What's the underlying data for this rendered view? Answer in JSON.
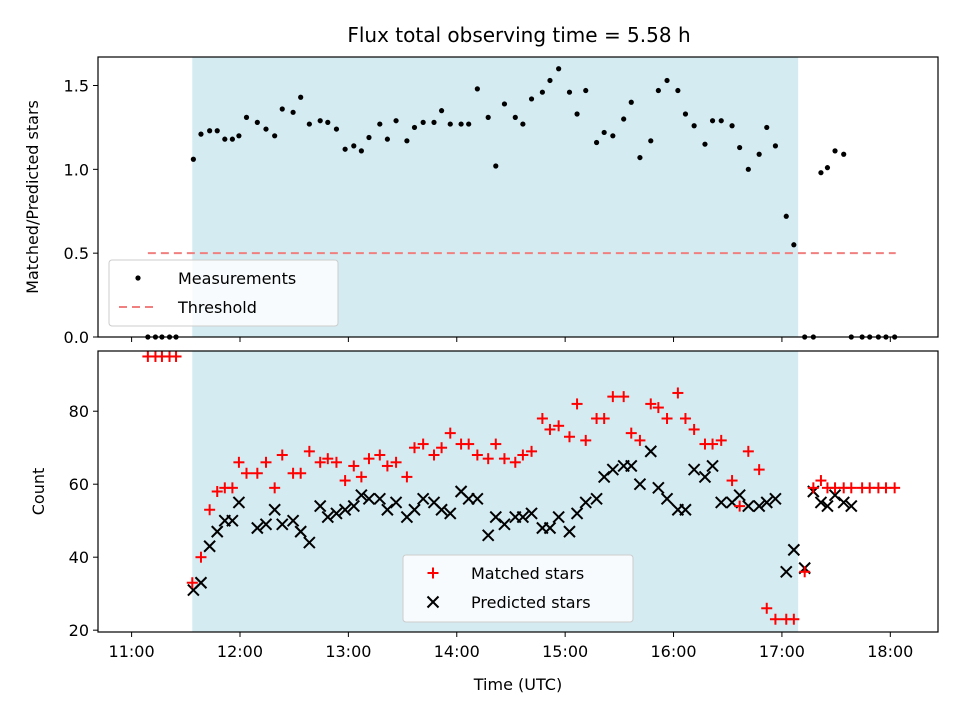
{
  "title": "Flux total observing time = 5.58 h",
  "xlabel": "Time (UTC)",
  "x_ticks": [
    "11:00",
    "12:00",
    "13:00",
    "14:00",
    "15:00",
    "16:00",
    "17:00",
    "18:00"
  ],
  "colors": {
    "observing_band": "#add8e6",
    "measurements": "#000000",
    "threshold": "#f08080",
    "matched": "#ff0000",
    "predicted": "#000000"
  },
  "chart_data": [
    {
      "type": "scatter",
      "title": "Flux total observing time = 5.58 h",
      "xlabel": "",
      "ylabel": "Matched/Predicted stars",
      "x_unit": "hours UTC",
      "xlim": [
        10.69,
        18.44
      ],
      "ylim": [
        0,
        1.67
      ],
      "yticks": [
        0.0,
        0.5,
        1.0,
        1.5
      ],
      "yticklabels": [
        "0.0",
        "0.5",
        "1.0",
        "1.5"
      ],
      "highlight_span": {
        "x_start": 11.56,
        "x_end": 17.15
      },
      "legend": {
        "placement": "lower-left",
        "entries": [
          "Measurements",
          "Threshold"
        ]
      },
      "threshold": {
        "name": "Threshold",
        "y": 0.5,
        "x_start": 11.15,
        "x_end": 18.05
      },
      "series": [
        {
          "name": "Measurements",
          "marker": "dot",
          "x": [
            11.15,
            11.22,
            11.28,
            11.35,
            11.41,
            11.57,
            11.64,
            11.72,
            11.79,
            11.86,
            11.93,
            11.99,
            12.06,
            12.16,
            12.24,
            12.32,
            12.39,
            12.49,
            12.56,
            12.64,
            12.74,
            12.81,
            12.89,
            12.97,
            13.05,
            13.12,
            13.19,
            13.29,
            13.36,
            13.44,
            13.54,
            13.61,
            13.69,
            13.79,
            13.86,
            13.94,
            14.04,
            14.11,
            14.19,
            14.29,
            14.36,
            14.44,
            14.54,
            14.61,
            14.69,
            14.79,
            14.86,
            14.94,
            15.04,
            15.11,
            15.19,
            15.29,
            15.36,
            15.44,
            15.54,
            15.61,
            15.69,
            15.79,
            15.86,
            15.94,
            16.04,
            16.11,
            16.19,
            16.29,
            16.36,
            16.44,
            16.54,
            16.61,
            16.69,
            16.79,
            16.86,
            16.94,
            17.04,
            17.11,
            17.21,
            17.29,
            17.36,
            17.42,
            17.49,
            17.57,
            17.64,
            17.74,
            17.81,
            17.89,
            17.96,
            18.04
          ],
          "y": [
            0,
            0,
            0,
            0,
            0,
            1.06,
            1.21,
            1.23,
            1.23,
            1.18,
            1.18,
            1.2,
            1.31,
            1.28,
            1.24,
            1.2,
            1.36,
            1.34,
            1.43,
            1.27,
            1.29,
            1.28,
            1.24,
            1.12,
            1.14,
            1.11,
            1.19,
            1.27,
            1.18,
            1.29,
            1.17,
            1.25,
            1.28,
            1.28,
            1.35,
            1.27,
            1.27,
            1.27,
            1.48,
            1.31,
            1.02,
            1.39,
            1.31,
            1.27,
            1.42,
            1.46,
            1.53,
            1.6,
            1.46,
            1.33,
            1.47,
            1.16,
            1.22,
            1.2,
            1.3,
            1.4,
            1.07,
            1.17,
            1.47,
            1.53,
            1.47,
            1.33,
            1.26,
            1.15,
            1.29,
            1.29,
            1.26,
            1.13,
            1.0,
            1.09,
            1.25,
            1.14,
            0.72,
            0.55,
            0,
            0,
            0.98,
            1.01,
            1.11,
            1.09,
            0,
            0,
            0,
            0,
            0,
            0
          ]
        }
      ]
    },
    {
      "type": "scatter",
      "title": "",
      "xlabel": "Time (UTC)",
      "ylabel": "Count",
      "x_unit": "hours UTC",
      "xlim": [
        10.69,
        18.44
      ],
      "ylim": [
        19.5,
        96.5
      ],
      "yticks": [
        20,
        40,
        60,
        80
      ],
      "yticklabels": [
        "20",
        "40",
        "60",
        "80"
      ],
      "highlight_span": {
        "x_start": 11.56,
        "x_end": 17.15
      },
      "legend": {
        "placement": "lower-center",
        "entries": [
          "Matched stars",
          "Predicted stars"
        ]
      },
      "series": [
        {
          "name": "Matched stars",
          "marker": "plus",
          "x": [
            11.15,
            11.22,
            11.28,
            11.35,
            11.41,
            11.56,
            11.64,
            11.72,
            11.79,
            11.86,
            11.93,
            11.99,
            12.06,
            12.16,
            12.24,
            12.32,
            12.39,
            12.49,
            12.56,
            12.64,
            12.74,
            12.81,
            12.89,
            12.97,
            13.05,
            13.12,
            13.19,
            13.29,
            13.36,
            13.44,
            13.54,
            13.61,
            13.69,
            13.79,
            13.86,
            13.94,
            14.04,
            14.11,
            14.19,
            14.29,
            14.36,
            14.44,
            14.54,
            14.61,
            14.69,
            14.79,
            14.86,
            14.94,
            15.04,
            15.11,
            15.19,
            15.29,
            15.36,
            15.44,
            15.54,
            15.61,
            15.69,
            15.79,
            15.86,
            15.94,
            16.04,
            16.11,
            16.19,
            16.29,
            16.36,
            16.44,
            16.54,
            16.61,
            16.69,
            16.79,
            16.86,
            16.94,
            17.04,
            17.11,
            17.21,
            17.29,
            17.36,
            17.42,
            17.49,
            17.57,
            17.64,
            17.74,
            17.81,
            17.89,
            17.96,
            18.04
          ],
          "y": [
            95,
            95,
            95,
            95,
            95,
            33,
            40,
            53,
            58,
            59,
            59,
            66,
            63,
            63,
            66,
            59,
            68,
            63,
            63,
            69,
            66,
            67,
            66,
            61,
            65,
            62,
            67,
            68,
            65,
            66,
            62,
            70,
            71,
            68,
            70,
            74,
            71,
            71,
            68,
            67,
            71,
            67,
            66,
            68,
            69,
            78,
            75,
            76,
            73,
            82,
            72,
            78,
            78,
            84,
            84,
            74,
            72,
            82,
            81,
            78,
            85,
            78,
            75,
            71,
            71,
            72,
            61,
            54,
            69,
            64,
            26,
            23,
            23,
            23,
            36,
            59,
            61,
            59,
            59,
            59,
            59,
            59,
            59,
            59,
            59,
            59
          ],
          "note": "x and y arrays list points in time order"
        },
        {
          "name": "Predicted stars",
          "marker": "x",
          "x": [
            11.57,
            11.64,
            11.72,
            11.79,
            11.86,
            11.93,
            11.99,
            12.16,
            12.24,
            12.32,
            12.39,
            12.49,
            12.56,
            12.64,
            12.74,
            12.81,
            12.89,
            12.97,
            13.05,
            13.12,
            13.19,
            13.29,
            13.36,
            13.44,
            13.54,
            13.61,
            13.69,
            13.79,
            13.86,
            13.94,
            14.04,
            14.11,
            14.19,
            14.29,
            14.36,
            14.44,
            14.54,
            14.61,
            14.69,
            14.79,
            14.86,
            14.94,
            15.04,
            15.11,
            15.19,
            15.29,
            15.36,
            15.44,
            15.54,
            15.61,
            15.69,
            15.79,
            15.86,
            15.94,
            16.04,
            16.11,
            16.19,
            16.29,
            16.36,
            16.44,
            16.54,
            16.61,
            16.69,
            16.79,
            16.86,
            16.94,
            17.04,
            17.11,
            17.21,
            17.29,
            17.36,
            17.42,
            17.49,
            17.57,
            17.64
          ],
          "y": [
            31,
            33,
            43,
            47,
            50,
            50,
            55,
            48,
            49,
            53,
            49,
            50,
            47,
            44,
            54,
            51,
            52,
            53,
            54,
            57,
            56,
            56,
            53,
            55,
            51,
            53,
            56,
            55,
            53,
            52,
            58,
            56,
            56,
            46,
            51,
            49,
            51,
            51,
            52,
            48,
            48,
            51,
            47,
            52,
            55,
            56,
            62,
            64,
            65,
            65,
            60,
            69,
            59,
            56,
            53,
            53,
            64,
            62,
            65,
            55,
            55,
            57,
            54,
            54,
            55,
            56,
            36,
            42,
            37,
            58,
            55,
            54,
            57,
            55,
            54
          ]
        }
      ]
    }
  ]
}
